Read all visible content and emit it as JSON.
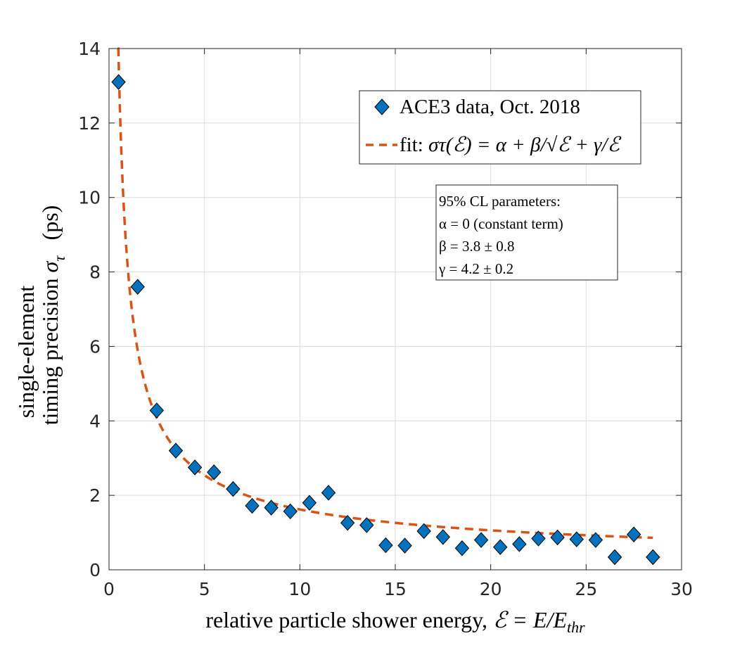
{
  "chart_data": {
    "type": "scatter",
    "xlabel": "relative particle shower energy, ",
    "xlabel_math": "ℰ = E/E",
    "xlabel_sub": "thr",
    "ylabel_line1": "single-element",
    "ylabel_line2": "timing precision ",
    "ylabel_sigma": "σ",
    "ylabel_tau": "τ",
    "ylabel_units": "(ps)",
    "xlim": [
      0,
      30
    ],
    "ylim": [
      0,
      14
    ],
    "x_ticks": [
      0,
      5,
      10,
      15,
      20,
      25,
      30
    ],
    "y_ticks": [
      0,
      2,
      4,
      6,
      8,
      10,
      12,
      14
    ],
    "grid": true,
    "colors": {
      "marker_fill": "#0072BD",
      "marker_edge": "#000000",
      "fit_line": "#D95319",
      "grid": "#dcdcdc",
      "axis": "#262626"
    },
    "series": [
      {
        "name": "ACE3 data, Oct. 2018",
        "marker": "diamond",
        "x": [
          0.5,
          1.5,
          2.5,
          3.5,
          4.5,
          5.5,
          6.5,
          7.5,
          8.5,
          9.5,
          10.5,
          11.5,
          12.5,
          13.5,
          14.5,
          15.5,
          16.5,
          17.5,
          18.5,
          19.5,
          20.5,
          21.5,
          22.5,
          23.5,
          24.5,
          25.5,
          26.5,
          27.5,
          28.5
        ],
        "y": [
          13.1,
          7.6,
          4.28,
          3.2,
          2.75,
          2.62,
          2.17,
          1.72,
          1.67,
          1.57,
          1.8,
          2.07,
          1.26,
          1.2,
          0.66,
          0.65,
          1.04,
          0.88,
          0.58,
          0.8,
          0.61,
          0.69,
          0.84,
          0.87,
          0.82,
          0.8,
          0.34,
          0.95,
          0.34
        ]
      },
      {
        "name": "fit",
        "style": "dashed",
        "model": "alpha + beta/sqrt(E) + gamma/E",
        "params": {
          "alpha": 0,
          "beta": 3.8,
          "gamma": 4.2
        },
        "x_range": [
          0.45,
          28.5
        ]
      }
    ],
    "legend": {
      "position": "top-right",
      "entry1": "ACE3 data, Oct. 2018",
      "entry2_prefix": "fit: ",
      "entry2_formula": "στ(ℰ) = α + β/√ℰ + γ/ℰ"
    },
    "annotation": {
      "lines": [
        "95% CL parameters:",
        "α = 0 (constant term)",
        "β = 3.8 ± 0.8",
        "γ = 4.2 ± 0.2"
      ]
    }
  }
}
